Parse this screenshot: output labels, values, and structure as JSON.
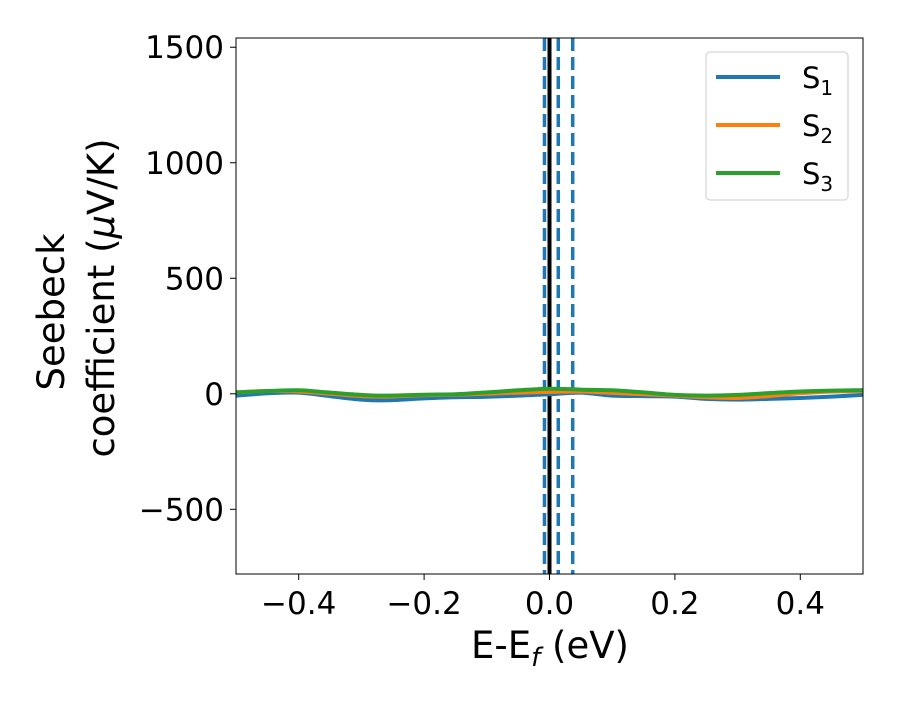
{
  "chart_data": {
    "type": "line",
    "title": "",
    "xlabel": {
      "main": "E-E",
      "sub": "f",
      "tail": " (eV)"
    },
    "ylabel": {
      "line1": "Seebeck",
      "line2": "coefficient  (",
      "mu": "μ",
      "line2_tail": "V/K)"
    },
    "xlim": [
      -0.5,
      0.5
    ],
    "ylim": [
      -780,
      1540
    ],
    "xticks": [
      -0.4,
      -0.2,
      0.0,
      0.2,
      0.4
    ],
    "xtick_labels": [
      "−0.4",
      "−0.2",
      "0.0",
      "0.2",
      "0.4"
    ],
    "yticks": [
      -500,
      0,
      500,
      1000,
      1500
    ],
    "ytick_labels": [
      "−500",
      "0",
      "500",
      "1000",
      "1500"
    ],
    "grid": false,
    "legend_placement": "top-right",
    "vertical_lines": [
      {
        "x": 0.0,
        "style": "solid",
        "color": "#000000"
      },
      {
        "x": -0.008,
        "style": "dashed",
        "color": "#1f77b4"
      },
      {
        "x": 0.014,
        "style": "dashed",
        "color": "#1f77b4"
      },
      {
        "x": 0.037,
        "style": "dashed",
        "color": "#1f77b4"
      }
    ],
    "series": [
      {
        "name": "S",
        "sub": "1",
        "color": "#1f77b4",
        "points": [
          [
            -0.5,
            -8
          ],
          [
            -0.45,
            2
          ],
          [
            -0.4,
            5
          ],
          [
            -0.35,
            -10
          ],
          [
            -0.3,
            -25
          ],
          [
            -0.26,
            -28
          ],
          [
            -0.2,
            -20
          ],
          [
            -0.15,
            -15
          ],
          [
            -0.1,
            -13
          ],
          [
            -0.05,
            -8
          ],
          [
            0.0,
            -2
          ],
          [
            0.05,
            5
          ],
          [
            0.1,
            -8
          ],
          [
            0.15,
            -10
          ],
          [
            0.2,
            -12
          ],
          [
            0.25,
            -22
          ],
          [
            0.3,
            -25
          ],
          [
            0.35,
            -22
          ],
          [
            0.4,
            -18
          ],
          [
            0.45,
            -12
          ],
          [
            0.5,
            -5
          ]
        ]
      },
      {
        "name": "S",
        "sub": "2",
        "color": "#ff7f0e",
        "points": [
          [
            -0.5,
            6
          ],
          [
            -0.45,
            12
          ],
          [
            -0.4,
            10
          ],
          [
            -0.35,
            0
          ],
          [
            -0.3,
            -10
          ],
          [
            -0.26,
            -12
          ],
          [
            -0.2,
            -6
          ],
          [
            -0.15,
            -4
          ],
          [
            -0.1,
            0
          ],
          [
            -0.05,
            5
          ],
          [
            0.0,
            8
          ],
          [
            0.05,
            10
          ],
          [
            0.1,
            4
          ],
          [
            0.15,
            -2
          ],
          [
            0.2,
            -8
          ],
          [
            0.25,
            -15
          ],
          [
            0.3,
            -18
          ],
          [
            0.35,
            -10
          ],
          [
            0.4,
            2
          ],
          [
            0.45,
            10
          ],
          [
            0.5,
            12
          ]
        ]
      },
      {
        "name": "S",
        "sub": "3",
        "color": "#2ca02c",
        "points": [
          [
            -0.5,
            6
          ],
          [
            -0.45,
            12
          ],
          [
            -0.4,
            15
          ],
          [
            -0.35,
            5
          ],
          [
            -0.3,
            -5
          ],
          [
            -0.26,
            -8
          ],
          [
            -0.2,
            -4
          ],
          [
            -0.15,
            -2
          ],
          [
            -0.1,
            6
          ],
          [
            -0.05,
            15
          ],
          [
            0.0,
            22
          ],
          [
            0.05,
            18
          ],
          [
            0.1,
            15
          ],
          [
            0.15,
            6
          ],
          [
            0.2,
            -5
          ],
          [
            0.25,
            -8
          ],
          [
            0.3,
            -5
          ],
          [
            0.35,
            3
          ],
          [
            0.4,
            10
          ],
          [
            0.45,
            14
          ],
          [
            0.5,
            16
          ]
        ]
      }
    ]
  }
}
